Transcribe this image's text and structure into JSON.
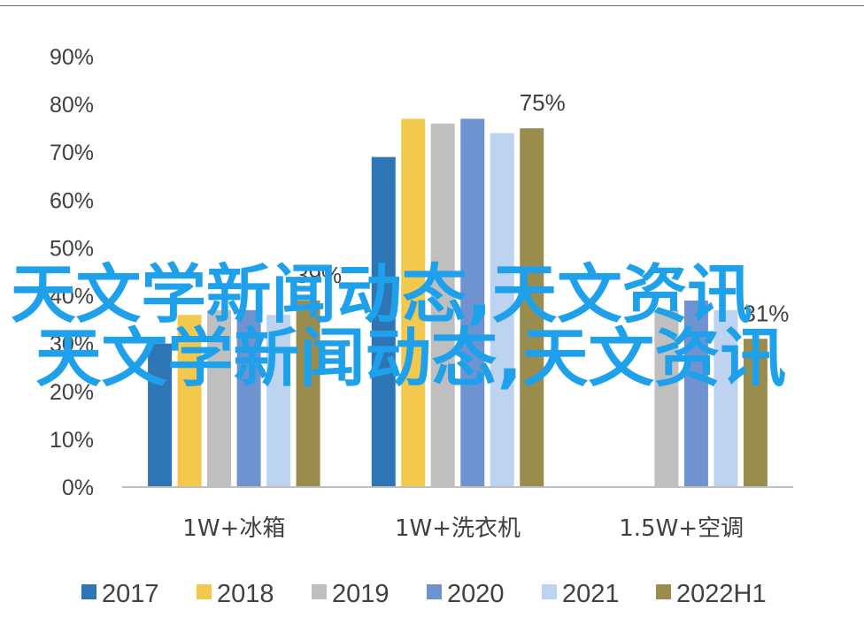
{
  "colors": {
    "2017": "#2e75b6",
    "2018": "#f2c94c",
    "2019": "#bfbfbf",
    "2020": "#6f93d0",
    "2021": "#bdd3ef",
    "2022H1": "#9a8c4d",
    "axis": "#bfbfbf",
    "text": "#404040",
    "watermark": "#1ea0ea"
  },
  "chart_data": {
    "type": "bar",
    "title": "",
    "xlabel": "",
    "ylabel": "",
    "ylim": [
      0,
      90
    ],
    "yticks": [
      "0%",
      "10%",
      "20%",
      "30%",
      "40%",
      "50%",
      "60%",
      "70%",
      "80%",
      "90%"
    ],
    "categories": [
      "1W+冰箱",
      "1W+洗衣机",
      "1.5W+空调"
    ],
    "series": [
      {
        "name": "2017",
        "values": [
          30,
          69,
          null
        ]
      },
      {
        "name": "2018",
        "values": [
          36,
          77,
          null
        ]
      },
      {
        "name": "2019",
        "values": [
          37,
          76,
          37
        ]
      },
      {
        "name": "2020",
        "values": [
          37,
          77,
          39
        ]
      },
      {
        "name": "2021",
        "values": [
          36,
          74,
          37
        ]
      },
      {
        "name": "2022H1",
        "values": [
          39,
          75,
          31
        ]
      }
    ],
    "data_labels": [
      {
        "series": "2022H1",
        "category": "1W+冰箱",
        "text": "39%"
      },
      {
        "series": "2022H1",
        "category": "1W+洗衣机",
        "text": "75%"
      },
      {
        "series": "2022H1",
        "category": "1.5W+空调",
        "text": "31%"
      }
    ],
    "legend": {
      "placement": "bottom",
      "entries": [
        "2017",
        "2018",
        "2019",
        "2020",
        "2021",
        "2022H1"
      ]
    },
    "grid": false
  },
  "watermark": {
    "lines": [
      "天文学新闻动态,天文资讯",
      "天文学新闻动态,天文资讯"
    ]
  }
}
